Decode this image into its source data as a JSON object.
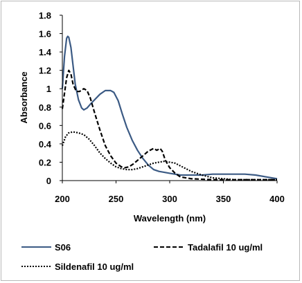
{
  "chart_data": {
    "type": "line",
    "title": "",
    "xlabel": "Wavelength (nm)",
    "ylabel": "Absorbance",
    "xlim": [
      200,
      400
    ],
    "ylim": [
      0,
      1.8
    ],
    "x_ticks": [
      "200",
      "250",
      "300",
      "350",
      "400"
    ],
    "y_ticks": [
      "0",
      "0.2",
      "0.4",
      "0.6",
      "0.8",
      "1",
      "1.2",
      "1.4",
      "1.6",
      "1.8"
    ],
    "grid": false,
    "legend_position": "bottom",
    "series": [
      {
        "name": "S06",
        "color": "#3b5a84",
        "dash": "solid",
        "points": [
          [
            200,
            1.0
          ],
          [
            202,
            1.35
          ],
          [
            204,
            1.55
          ],
          [
            205,
            1.57
          ],
          [
            206,
            1.56
          ],
          [
            208,
            1.45
          ],
          [
            210,
            1.25
          ],
          [
            212,
            1.05
          ],
          [
            215,
            0.88
          ],
          [
            218,
            0.79
          ],
          [
            220,
            0.77
          ],
          [
            223,
            0.79
          ],
          [
            226,
            0.83
          ],
          [
            230,
            0.88
          ],
          [
            235,
            0.94
          ],
          [
            240,
            0.98
          ],
          [
            245,
            0.98
          ],
          [
            248,
            0.96
          ],
          [
            252,
            0.87
          ],
          [
            256,
            0.72
          ],
          [
            260,
            0.58
          ],
          [
            265,
            0.44
          ],
          [
            270,
            0.33
          ],
          [
            275,
            0.24
          ],
          [
            280,
            0.17
          ],
          [
            285,
            0.12
          ],
          [
            290,
            0.1
          ],
          [
            295,
            0.09
          ],
          [
            300,
            0.08
          ],
          [
            310,
            0.06
          ],
          [
            320,
            0.06
          ],
          [
            330,
            0.06
          ],
          [
            340,
            0.07
          ],
          [
            350,
            0.07
          ],
          [
            360,
            0.07
          ],
          [
            370,
            0.07
          ],
          [
            380,
            0.06
          ],
          [
            390,
            0.04
          ],
          [
            400,
            0.02
          ]
        ]
      },
      {
        "name": "Tadalafil 10 ug/ml",
        "color": "#000000",
        "dash": "6,3",
        "points": [
          [
            200,
            0.78
          ],
          [
            202,
            0.95
          ],
          [
            204,
            1.12
          ],
          [
            206,
            1.2
          ],
          [
            208,
            1.16
          ],
          [
            210,
            1.05
          ],
          [
            213,
            0.97
          ],
          [
            216,
            0.97
          ],
          [
            220,
            1.0
          ],
          [
            223,
            0.98
          ],
          [
            226,
            0.9
          ],
          [
            230,
            0.74
          ],
          [
            235,
            0.55
          ],
          [
            240,
            0.38
          ],
          [
            245,
            0.27
          ],
          [
            250,
            0.19
          ],
          [
            255,
            0.15
          ],
          [
            258,
            0.14
          ],
          [
            262,
            0.15
          ],
          [
            266,
            0.18
          ],
          [
            270,
            0.22
          ],
          [
            275,
            0.27
          ],
          [
            280,
            0.32
          ],
          [
            285,
            0.35
          ],
          [
            288,
            0.33
          ],
          [
            291,
            0.35
          ],
          [
            293,
            0.32
          ],
          [
            296,
            0.22
          ],
          [
            300,
            0.14
          ],
          [
            305,
            0.08
          ],
          [
            310,
            0.04
          ],
          [
            320,
            0.02
          ],
          [
            340,
            0.01
          ],
          [
            360,
            0.01
          ],
          [
            380,
            0.01
          ],
          [
            400,
            0.01
          ]
        ]
      },
      {
        "name": "Sildenafil 10 ug/ml",
        "color": "#000000",
        "dash": "2,2",
        "points": [
          [
            200,
            0.38
          ],
          [
            203,
            0.48
          ],
          [
            206,
            0.52
          ],
          [
            210,
            0.53
          ],
          [
            215,
            0.52
          ],
          [
            220,
            0.5
          ],
          [
            225,
            0.45
          ],
          [
            230,
            0.38
          ],
          [
            235,
            0.3
          ],
          [
            240,
            0.24
          ],
          [
            245,
            0.19
          ],
          [
            250,
            0.15
          ],
          [
            255,
            0.13
          ],
          [
            260,
            0.12
          ],
          [
            265,
            0.12
          ],
          [
            270,
            0.13
          ],
          [
            275,
            0.15
          ],
          [
            280,
            0.17
          ],
          [
            285,
            0.19
          ],
          [
            290,
            0.2
          ],
          [
            295,
            0.21
          ],
          [
            300,
            0.2
          ],
          [
            305,
            0.19
          ],
          [
            310,
            0.16
          ],
          [
            315,
            0.13
          ],
          [
            320,
            0.1
          ],
          [
            330,
            0.06
          ],
          [
            340,
            0.03
          ],
          [
            350,
            0.02
          ],
          [
            360,
            0.01
          ],
          [
            380,
            0.01
          ],
          [
            400,
            0.01
          ]
        ]
      }
    ]
  }
}
